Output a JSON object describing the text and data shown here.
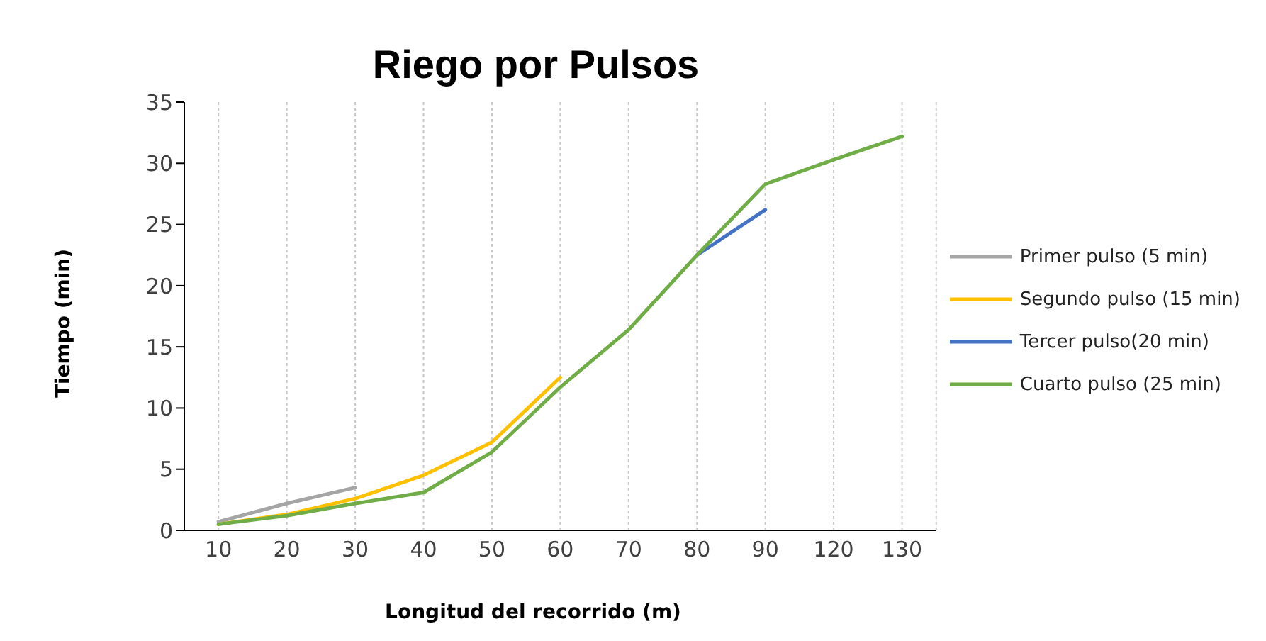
{
  "chart_data": {
    "type": "line",
    "title": "Riego por Pulsos",
    "xlabel": "Longitud del recorrido (m)",
    "ylabel": "Tiempo (min)",
    "categories": [
      "10",
      "20",
      "30",
      "40",
      "50",
      "60",
      "70",
      "80",
      "90",
      "120",
      "130"
    ],
    "series": [
      {
        "name": "Primer pulso (5 min)",
        "color": "#a5a5a5",
        "values": [
          0.7,
          2.2,
          3.5,
          null,
          null,
          null,
          null,
          null,
          null,
          null,
          null
        ]
      },
      {
        "name": "Segundo pulso (15 min)",
        "color": "#ffc000",
        "values": [
          0.5,
          1.3,
          2.6,
          4.5,
          7.2,
          12.5,
          null,
          null,
          null,
          null,
          null
        ]
      },
      {
        "name": "Tercer pulso(20 min)",
        "color": "#4472c4",
        "values": [
          null,
          null,
          null,
          null,
          null,
          null,
          null,
          22.5,
          26.2,
          null,
          null
        ]
      },
      {
        "name": "Cuarto pulso (25 min)",
        "color": "#70ad47",
        "values": [
          0.5,
          1.2,
          2.2,
          3.1,
          6.4,
          11.7,
          16.4,
          22.5,
          28.3,
          30.3,
          32.2
        ]
      }
    ],
    "ylim": [
      0,
      35
    ],
    "yticks": [
      0,
      5,
      10,
      15,
      20,
      25,
      30,
      35
    ],
    "grid": "x",
    "legend": "right",
    "marker": "none",
    "line_style": "solid"
  }
}
